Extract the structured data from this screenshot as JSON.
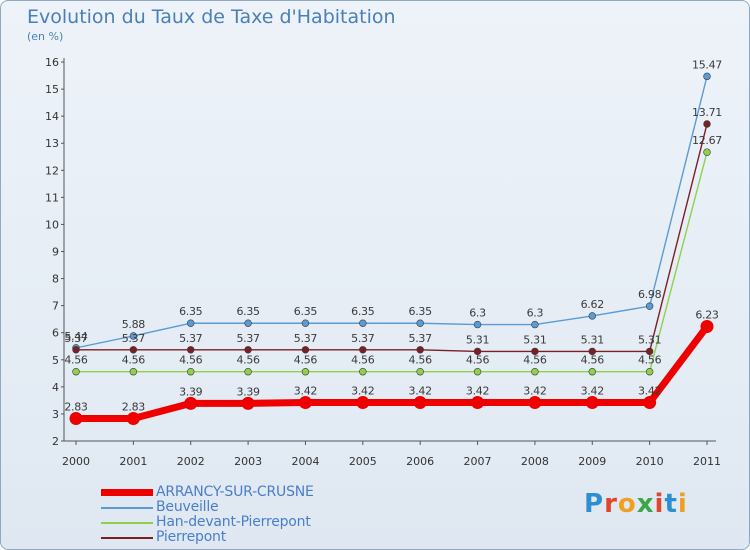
{
  "header": {
    "title": "Evolution du Taux de Taxe d'Habitation",
    "unit": "(en %)"
  },
  "brand": {
    "letters": [
      "P",
      "r",
      "o",
      "x",
      "i",
      "t",
      "i"
    ],
    "colors": [
      "#2e8fd0",
      "#e0462c",
      "#f0a020",
      "#3aa84a",
      "#e0462c",
      "#2e8fd0",
      "#f0a020"
    ]
  },
  "chart_data": {
    "type": "line",
    "x": [
      "2000",
      "2001",
      "2002",
      "2003",
      "2004",
      "2005",
      "2006",
      "2007",
      "2008",
      "2009",
      "2010",
      "2011"
    ],
    "ylim": [
      2,
      16
    ],
    "yticks": [
      "2",
      "3",
      "4",
      "5",
      "6",
      "7",
      "8",
      "9",
      "10",
      "11",
      "12",
      "13",
      "14",
      "15",
      "16"
    ],
    "grid": false,
    "legend_position": "bottom-left",
    "series": [
      {
        "name": "Beuveille",
        "color": "#5b9bd5",
        "values": [
          5.44,
          5.88,
          6.35,
          6.35,
          6.35,
          6.35,
          6.35,
          6.3,
          6.3,
          6.62,
          6.98,
          15.47
        ],
        "labels": [
          "5.44",
          "5.88",
          "6.35",
          "6.35",
          "6.35",
          "6.35",
          "6.35",
          "6.3",
          "6.3",
          "6.62",
          "6.98",
          "15.47"
        ]
      },
      {
        "name": "Han-devant-Pierrepont",
        "color": "#8fd14f",
        "values": [
          4.56,
          4.56,
          4.56,
          4.56,
          4.56,
          4.56,
          4.56,
          4.56,
          4.56,
          4.56,
          4.56,
          12.67
        ],
        "labels": [
          "4.56",
          "4.56",
          "4.56",
          "4.56",
          "4.56",
          "4.56",
          "4.56",
          "4.56",
          "4.56",
          "4.56",
          "4.56",
          "12.67"
        ]
      },
      {
        "name": "Pierrepont",
        "color": "#7b1f24",
        "values": [
          5.37,
          5.37,
          5.37,
          5.37,
          5.37,
          5.37,
          5.37,
          5.31,
          5.31,
          5.31,
          5.31,
          13.71
        ],
        "labels": [
          "5.37",
          "5.37",
          "5.37",
          "5.37",
          "5.37",
          "5.37",
          "5.37",
          "5.31",
          "5.31",
          "5.31",
          "5.31",
          "13.71"
        ]
      },
      {
        "name": "ARRANCY-SUR-CRUSNE",
        "color": "#ee0000",
        "values": [
          2.83,
          2.83,
          3.39,
          3.39,
          3.42,
          3.42,
          3.42,
          3.42,
          3.42,
          3.42,
          3.42,
          6.23
        ],
        "labels": [
          "2.83",
          "2.83",
          "3.39",
          "3.39",
          "3.42",
          "3.42",
          "3.42",
          "3.42",
          "3.42",
          "3.42",
          "3.42",
          "6.23"
        ]
      }
    ]
  },
  "legend": {
    "items": [
      {
        "label": "ARRANCY-SUR-CRUSNE",
        "color": "#ee0000"
      },
      {
        "label": "Beuveille",
        "color": "#5b9bd5"
      },
      {
        "label": "Han-devant-Pierrepont",
        "color": "#8fd14f"
      },
      {
        "label": "Pierrepont",
        "color": "#7b1f24"
      }
    ]
  }
}
